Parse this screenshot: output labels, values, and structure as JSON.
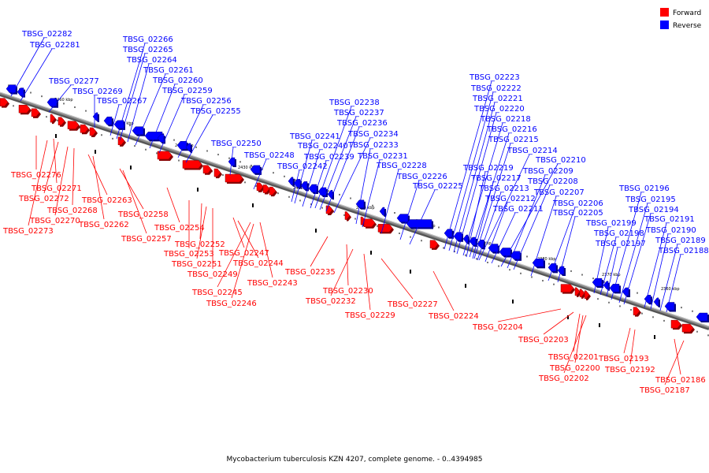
{
  "caption": "Mycobacterium tuberculosis KZN 4207, complete genome. - 0..4394985",
  "legend": [
    {
      "label": "Forward",
      "color": "#ff0000"
    },
    {
      "label": "Reverse",
      "color": "#0000ff"
    }
  ],
  "colors": {
    "forward": "#ff0000",
    "reverse": "#0000ff",
    "backbone": "#888888"
  },
  "ticks": [
    "2460 kbp",
    "2450 kbp",
    "2440 kbp",
    "2430 kbp",
    "2420 kbp",
    "2410 kbp",
    "2400 kbp",
    "2390 kbp",
    "2380 kbp",
    "2370 kbp",
    "2360 kbp"
  ],
  "reverse_genes": [
    "TBSG_02282",
    "TBSG_02281",
    "TBSG_02277",
    "TBSG_02269",
    "TBSG_02267",
    "TBSG_02266",
    "TBSG_02265",
    "TBSG_02264",
    "TBSG_02261",
    "TBSG_02260",
    "TBSG_02259",
    "TBSG_02256",
    "TBSG_02255",
    "TBSG_02250",
    "TBSG_02248",
    "TBSG_02242",
    "TBSG_02241",
    "TBSG_02240",
    "TBSG_02239",
    "TBSG_02238",
    "TBSG_02237",
    "TBSG_02236",
    "TBSG_02234",
    "TBSG_02233",
    "TBSG_02231",
    "TBSG_02228",
    "TBSG_02226",
    "TBSG_02225",
    "TBSG_02223",
    "TBSG_02222",
    "TBSG_02221",
    "TBSG_02220",
    "TBSG_02218",
    "TBSG_02216",
    "TBSG_02215",
    "TBSG_02214",
    "TBSG_02219",
    "TBSG_02217",
    "TBSG_02213",
    "TBSG_02212",
    "TBSG_02211",
    "TBSG_02210",
    "TBSG_02209",
    "TBSG_02208",
    "TBSG_02207",
    "TBSG_02206",
    "TBSG_02205",
    "TBSG_02199",
    "TBSG_02198",
    "TBSG_02197",
    "TBSG_02196",
    "TBSG_02195",
    "TBSG_02194",
    "TBSG_02191",
    "TBSG_02190",
    "TBSG_02189",
    "TBSG_02188"
  ],
  "forward_genes": [
    "TBSG_02276",
    "TBSG_02271",
    "TBSG_02272",
    "TBSG_02268",
    "TBSG_02270",
    "TBSG_02273",
    "TBSG_02263",
    "TBSG_02262",
    "TBSG_02258",
    "TBSG_02257",
    "TBSG_02254",
    "TBSG_02253",
    "TBSG_02252",
    "TBSG_02251",
    "TBSG_02249",
    "TBSG_02247",
    "TBSG_02244",
    "TBSG_02243",
    "TBSG_02245",
    "TBSG_02246",
    "TBSG_02235",
    "TBSG_02230",
    "TBSG_02232",
    "TBSG_02229",
    "TBSG_02227",
    "TBSG_02224",
    "TBSG_02204",
    "TBSG_02203",
    "TBSG_02201",
    "TBSG_02200",
    "TBSG_02202",
    "TBSG_02193",
    "TBSG_02192",
    "TBSG_02186",
    "TBSG_02187"
  ]
}
